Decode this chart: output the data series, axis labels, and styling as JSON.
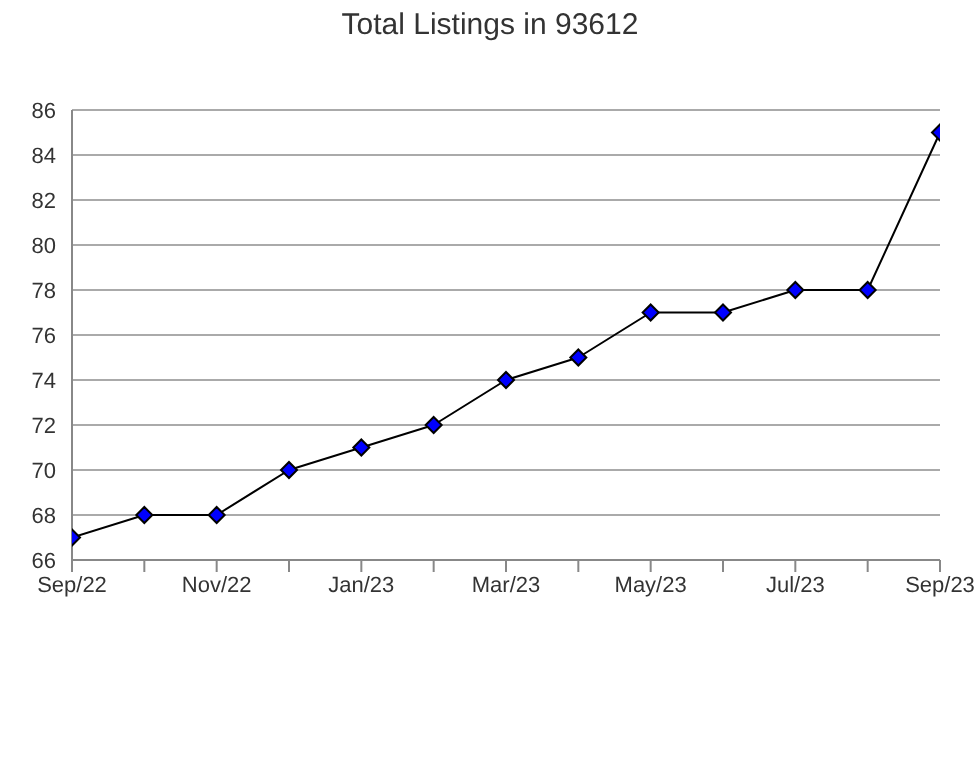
{
  "chart_data": {
    "type": "line",
    "title": "Total Listings in 93612",
    "x": [
      "2022-09",
      "2022-10",
      "2022-11",
      "2022-12",
      "2023-01",
      "2023-02",
      "2023-03",
      "2023-04",
      "2023-05",
      "2023-06",
      "2023-07",
      "2023-08",
      "2023-09"
    ],
    "series": [
      {
        "color": "#000000",
        "colors": [
          "#0000ff",
          "#0000ff",
          "#0000ff",
          "#0000ff",
          "#0000ff",
          "#0000ff",
          "#0000ff",
          "#0000ff",
          "#0000ff",
          "#0000ff",
          "#0000ff",
          "#0000ff",
          "#0000ff"
        ],
        "values": [
          67,
          68,
          68,
          70,
          71,
          72,
          74,
          75,
          77,
          77,
          78,
          78,
          85
        ]
      }
    ],
    "xlim": [
      "2022-09",
      "2023-09"
    ],
    "xticks": [
      {
        "value": "2022-09",
        "label": "Sep/22"
      },
      {
        "value": "2022-10",
        "label": null
      },
      {
        "value": "2022-11",
        "label": "Nov/22"
      },
      {
        "value": "2022-12",
        "label": null
      },
      {
        "value": "2023-01",
        "label": "Jan/23"
      },
      {
        "value": "2023-02",
        "label": null
      },
      {
        "value": "2023-03",
        "label": "Mar/23"
      },
      {
        "value": "2023-04",
        "label": null
      },
      {
        "value": "2023-05",
        "label": "May/23"
      },
      {
        "value": "2023-06",
        "label": null
      },
      {
        "value": "2023-07",
        "label": "Jul/23"
      },
      {
        "value": "2023-08",
        "label": null
      },
      {
        "value": "2023-09",
        "label": "Sep/23"
      }
    ],
    "ylim": [
      66,
      86
    ],
    "yticks": [
      66,
      68,
      70,
      72,
      74,
      76,
      78,
      80,
      82,
      84,
      86
    ],
    "grid": "y",
    "marker": "diamond",
    "line_style": "solid"
  }
}
